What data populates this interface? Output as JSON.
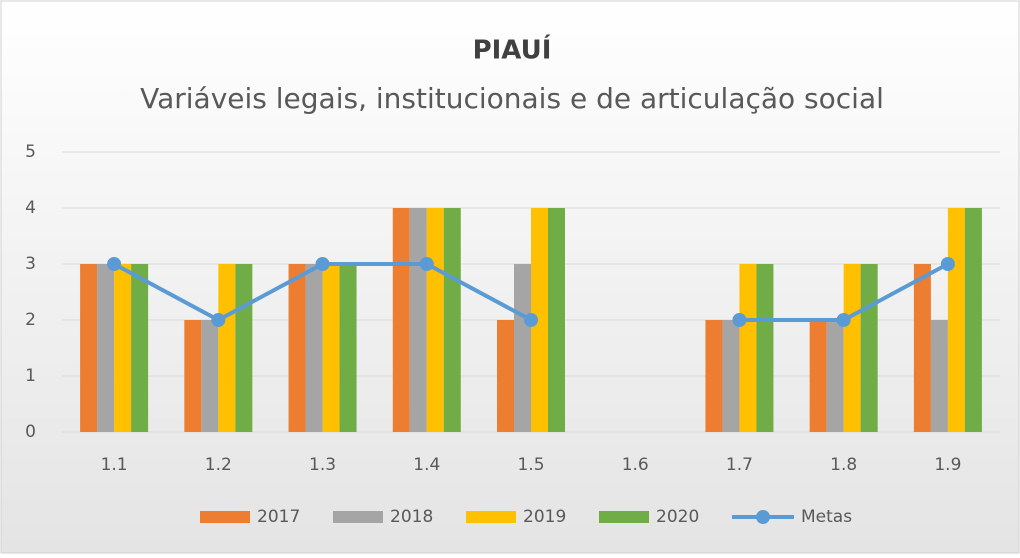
{
  "chart_data": {
    "type": "bar_line",
    "title": "PIAUÍ",
    "subtitle": "Variáveis legais, institucionais e de articulação social",
    "categories": [
      "1.1",
      "1.2",
      "1.3",
      "1.4",
      "1.5",
      "1.6",
      "1.7",
      "1.8",
      "1.9"
    ],
    "series": [
      {
        "name": "2017",
        "type": "bar",
        "color": "#ed7d31",
        "values": [
          3,
          2,
          3,
          4,
          2,
          null,
          2,
          2,
          3
        ]
      },
      {
        "name": "2018",
        "type": "bar",
        "color": "#a5a5a5",
        "values": [
          3,
          2,
          3,
          4,
          3,
          null,
          2,
          2,
          2
        ]
      },
      {
        "name": "2019",
        "type": "bar",
        "color": "#ffc000",
        "values": [
          3,
          3,
          3,
          4,
          4,
          null,
          3,
          3,
          4
        ]
      },
      {
        "name": "2020",
        "type": "bar",
        "color": "#70ad47",
        "values": [
          3,
          3,
          3,
          4,
          4,
          null,
          3,
          3,
          4
        ]
      },
      {
        "name": "Metas",
        "type": "line",
        "color": "#5b9bd5",
        "values": [
          3,
          2,
          3,
          3,
          2,
          null,
          2,
          2,
          3
        ]
      }
    ],
    "ylim": [
      0,
      5
    ],
    "yticks": [
      0,
      1,
      2,
      3,
      4,
      5
    ],
    "grid": true,
    "legend": "bottom"
  }
}
